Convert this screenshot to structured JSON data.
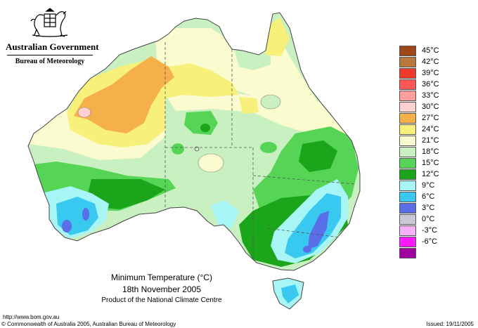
{
  "header": {
    "government": "Australian Government",
    "bureau": "Bureau of Meteorology"
  },
  "map": {
    "title_line1": "Minimum Temperature (°C)",
    "title_line2": "18th November 2005",
    "product": "Product of the National Climate Centre"
  },
  "legend": {
    "items": [
      {
        "label": "45°C",
        "color": "#a0471a"
      },
      {
        "label": "42°C",
        "color": "#b8793a"
      },
      {
        "label": "39°C",
        "color": "#f23a2a"
      },
      {
        "label": "36°C",
        "color": "#ff5757"
      },
      {
        "label": "33°C",
        "color": "#ff9d9d"
      },
      {
        "label": "30°C",
        "color": "#ffd0d0"
      },
      {
        "label": "27°C",
        "color": "#f5b04a"
      },
      {
        "label": "24°C",
        "color": "#f7f07a"
      },
      {
        "label": "21°C",
        "color": "#fbfbd0"
      },
      {
        "label": "18°C",
        "color": "#c9f0c0"
      },
      {
        "label": "15°C",
        "color": "#55d455"
      },
      {
        "label": "12°C",
        "color": "#1aa51a"
      },
      {
        "label": "9°C",
        "color": "#a8f5f5"
      },
      {
        "label": "6°C",
        "color": "#38c8f0"
      },
      {
        "label": "3°C",
        "color": "#5a6ee8"
      },
      {
        "label": "0°C",
        "color": "#c8c8d6"
      },
      {
        "label": "-3°C",
        "color": "#f7b0f7"
      },
      {
        "label": "-6°C",
        "color": "#ff1aff"
      },
      {
        "label": "",
        "color": "#a000a0"
      }
    ]
  },
  "footer": {
    "url": "http://www.bom.gov.au",
    "copyright": "© Commonwealth of Australia 2005, Australian Bureau of Meteorology",
    "issued": "Issued: 19/11/2005"
  }
}
